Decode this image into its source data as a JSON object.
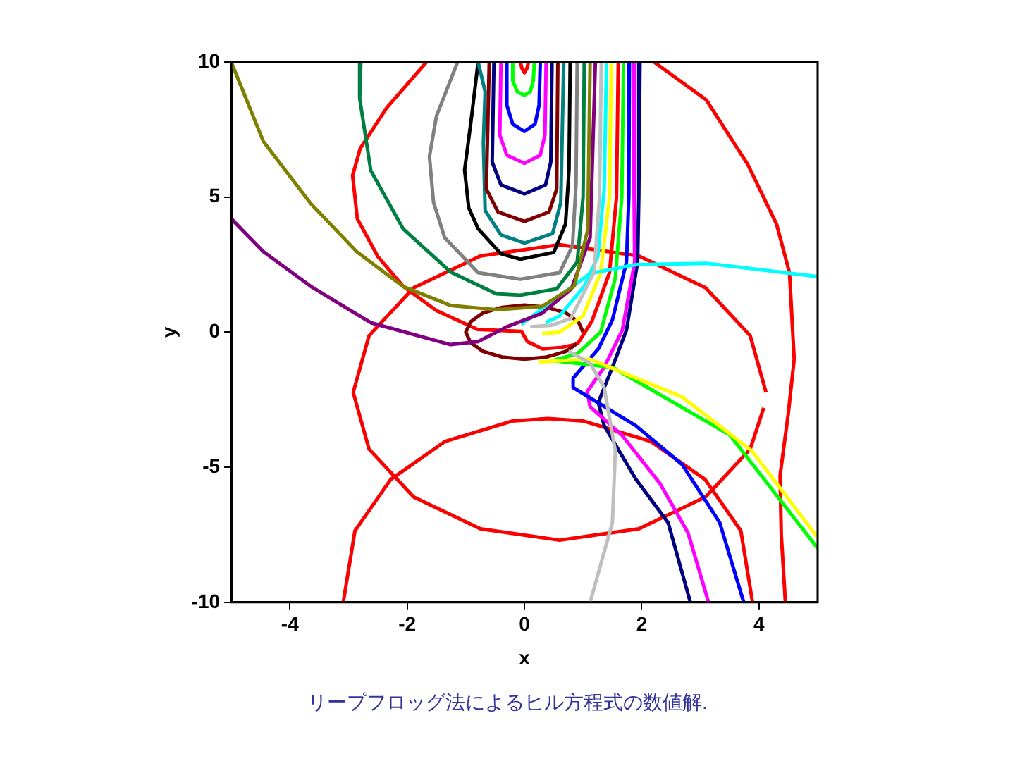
{
  "chart_data": {
    "type": "line",
    "xlabel": "x",
    "ylabel": "y",
    "xlim": [
      -5,
      5
    ],
    "xticks": [
      -4,
      -2,
      0,
      2,
      4
    ],
    "ylim": [
      -10,
      10
    ],
    "yticks": [
      -10,
      -5,
      0,
      5,
      10
    ],
    "grid": false,
    "legend": false,
    "marker": "none",
    "line_style": "solid",
    "annotations": [
      "リープフロッグ法によるヒル方程式の数値解."
    ],
    "series": [
      {
        "color": "#ff0000",
        "x": [
          -0.07,
          -0.04,
          0,
          0.04,
          0.07
        ],
        "values": [
          10,
          9.75,
          9.6,
          9.75,
          10
        ]
      },
      {
        "color": "#00ff00",
        "x": [
          -0.2,
          -0.2,
          -0.12,
          0,
          0.1,
          0.15,
          0.17
        ],
        "values": [
          10,
          9.3,
          8.9,
          8.77,
          8.9,
          9.3,
          10
        ]
      },
      {
        "color": "#0000ff",
        "x": [
          -0.3,
          -0.3,
          -0.2,
          0,
          0.18,
          0.25,
          0.27
        ],
        "values": [
          10,
          8.4,
          7.7,
          7.43,
          7.7,
          8.4,
          10
        ]
      },
      {
        "color": "#ff00ff",
        "x": [
          -0.4,
          -0.42,
          -0.3,
          0,
          0.27,
          0.35,
          0.37
        ],
        "values": [
          10,
          7.3,
          6.55,
          6.25,
          6.55,
          7.3,
          10
        ]
      },
      {
        "color": "#000080",
        "x": [
          -0.52,
          -0.55,
          -0.4,
          0,
          0.36,
          0.45,
          0.47
        ],
        "values": [
          10,
          6.3,
          5.45,
          5.12,
          5.45,
          6.3,
          10
        ]
      },
      {
        "color": "#800000",
        "x": [
          -0.6,
          -0.65,
          -0.45,
          0,
          0.42,
          0.55,
          0.57
        ],
        "values": [
          10,
          5.3,
          4.45,
          4.1,
          4.45,
          5.3,
          10
        ]
      },
      {
        "color": "#008080",
        "x": [
          -0.79,
          -0.67,
          -0.7,
          -0.67,
          -0.4,
          0,
          0.48,
          0.62,
          0.67
        ],
        "values": [
          10,
          8.9,
          7,
          4.5,
          3.6,
          3.3,
          3.65,
          4.8,
          10
        ]
      },
      {
        "color": "#000000",
        "x": [
          -0.79,
          -0.9,
          -1.02,
          -0.95,
          -0.79,
          -0.4,
          -0.07,
          0.5,
          0.7,
          0.76,
          0.78
        ],
        "values": [
          10,
          8,
          6,
          4.6,
          3.83,
          2.9,
          2.7,
          2.95,
          4,
          6,
          10
        ]
      },
      {
        "color": "#808080",
        "x": [
          -1.14,
          -1.5,
          -1.62,
          -1.55,
          -1.36,
          -0.79,
          -0.07,
          0.6,
          0.82,
          0.88,
          0.9
        ],
        "values": [
          10,
          8,
          6.5,
          4.8,
          3.5,
          2.2,
          1.96,
          2.2,
          3.2,
          5.5,
          10
        ]
      },
      {
        "color": "#008040",
        "x": [
          -2.79,
          -2.81,
          -2.62,
          -2.07,
          -1.26,
          -0.48,
          -0.07,
          0.55,
          0.9,
          1,
          1.02
        ],
        "values": [
          10,
          8.66,
          5.98,
          3.83,
          2.23,
          1.42,
          1.37,
          1.6,
          2.6,
          5,
          10
        ]
      },
      {
        "color": "#808000",
        "x": [
          -5,
          -4.45,
          -3.64,
          -2.86,
          -2.07,
          -1.26,
          -0.48,
          0.3,
          0.85,
          1.08,
          1.12
        ],
        "values": [
          10,
          7.05,
          4.75,
          2.98,
          1.69,
          0.99,
          0.83,
          0.95,
          1.7,
          3.8,
          10
        ]
      },
      {
        "color": "#800080",
        "x": [
          -5,
          -4.45,
          -3.64,
          -2.62,
          -1.26,
          -0.79,
          -0.31,
          0.3,
          0.8,
          1.12,
          1.21
        ],
        "values": [
          4.2,
          2.98,
          1.69,
          0.35,
          -0.46,
          -0.35,
          0.19,
          0.7,
          1.6,
          3.5,
          10
        ]
      },
      {
        "color": "#c0c0c0",
        "x": [
          0.1,
          0.45,
          0.79,
          1.19,
          1.28,
          1.31
        ],
        "values": [
          0.2,
          0.25,
          0.5,
          2.23,
          5,
          10
        ]
      },
      {
        "color": "#bfbfbf",
        "x": [
          0.75,
          1.12,
          1.36,
          1.55,
          1.5,
          1.12
        ],
        "values": [
          -0.7,
          -1.15,
          -2.05,
          -4.4,
          -7.05,
          -10
        ]
      },
      {
        "color": "#00ffff",
        "x": [
          1.4,
          1.36,
          1.25,
          1.02,
          0.6,
          0.36
        ],
        "values": [
          10,
          5.3,
          2.8,
          1.7,
          0.6,
          0.35
        ]
      },
      {
        "color": "#00fefe",
        "x": [
          -0.05,
          0.48,
          1.12,
          1.9,
          3.1,
          5
        ],
        "values": [
          0.29,
          1.16,
          2.17,
          2.5,
          2.55,
          2.06
        ]
      },
      {
        "color": "#ffff00",
        "x": [
          1.48,
          1.45,
          1.3,
          1,
          0.6,
          0.3
        ],
        "values": [
          10,
          5,
          2.2,
          0.6,
          0,
          -0.05
        ]
      },
      {
        "color": "#fefe00",
        "x": [
          0.24,
          1.12,
          2.69,
          3.88,
          5
        ],
        "values": [
          -1.1,
          -1,
          -2.4,
          -4.4,
          -7.6
        ]
      },
      {
        "color": "#fe0000",
        "x": [
          1.6,
          1.57,
          1.45,
          1.15,
          0.9
        ],
        "values": [
          10,
          5,
          2.2,
          0.4,
          -0.45
        ]
      },
      {
        "color": "#00fe00",
        "x": [
          1.69,
          1.66,
          1.55,
          1.3,
          0.9,
          0.48,
          1.5,
          3.5,
          5
        ],
        "values": [
          10,
          5,
          2,
          0,
          -0.8,
          -1.05,
          -1.3,
          -3.8,
          -8
        ]
      },
      {
        "color": "#0000fe",
        "x": [
          1.79,
          1.78,
          1.74,
          1.5,
          1.26,
          0.83,
          0.83,
          1.9,
          2.69,
          3.33,
          3.74
        ],
        "values": [
          10,
          5,
          2.6,
          0.45,
          -0.62,
          -1.7,
          -2.05,
          -3.46,
          -4.9,
          -7.05,
          -10
        ]
      },
      {
        "color": "#fe00fe",
        "x": [
          1.86,
          1.87,
          1.88,
          1.67,
          1.36,
          1.07,
          1.12,
          1.67,
          2.31,
          2.79,
          3.14
        ],
        "values": [
          10,
          5,
          2.6,
          0.08,
          -1.3,
          -2.2,
          -2.76,
          -3.83,
          -5.6,
          -7.43,
          -10
        ]
      },
      {
        "color": "#00007f",
        "x": [
          1.97,
          1.95,
          1.93,
          1.74,
          1.5,
          1.26,
          1.36,
          1.9,
          2.45,
          2.83
        ],
        "values": [
          10,
          5,
          2.6,
          0.08,
          -1.3,
          -2.6,
          -3.46,
          -5.44,
          -7.05,
          -10
        ]
      },
      {
        "color": "#7f0000",
        "x": [
          1,
          0.92,
          0.71,
          0.38,
          0,
          -0.38,
          -0.71,
          -0.92,
          -1,
          -0.92,
          -0.71,
          -0.38,
          0,
          0.38,
          0.71,
          0.92
        ],
        "values": [
          0,
          0.38,
          0.71,
          0.92,
          1,
          0.92,
          0.71,
          0.38,
          0,
          -0.38,
          -0.71,
          -0.92,
          -1,
          -0.92,
          -0.71,
          -0.38
        ]
      },
      {
        "color": "#fd0000",
        "x": [
          -1.67,
          -2.35,
          -2.8,
          -2.93,
          -2.85,
          -2.5,
          -2.07,
          -1.5,
          -0.8,
          -0.05,
          0.05,
          0.31,
          0.64,
          0.88
        ],
        "values": [
          10,
          8.3,
          6.8,
          5.8,
          4.2,
          2.8,
          1.7,
          0.8,
          0.1,
          0.03,
          -0.35,
          -0.62,
          -0.56,
          -0.45
        ]
      },
      {
        "color": "#fc0000",
        "x": [
          2.21,
          3.1,
          3.81,
          4.3,
          4.52,
          4.6,
          4.5,
          4.36,
          4.38,
          4.45
        ],
        "values": [
          10,
          8.6,
          6.2,
          4,
          2.2,
          -1,
          -3,
          -5.3,
          -7.5,
          -10
        ]
      },
      {
        "color": "#fb0000",
        "x": [
          4.12,
          3.85,
          3.09,
          1.95,
          0.6,
          -0.75,
          -1.89,
          -2.65,
          -2.92,
          -2.65,
          -1.89,
          -0.75,
          0.6,
          1.95,
          3.09,
          3.85,
          4.08
        ],
        "values": [
          -2.23,
          -0.13,
          1.64,
          2.82,
          3.24,
          2.82,
          1.64,
          -0.13,
          -2.23,
          -4.33,
          -6.1,
          -7.28,
          -7.7,
          -7.28,
          -6.1,
          -4.33,
          -2.8
        ]
      },
      {
        "color": "#fa0000",
        "x": [
          -3.09,
          -2.89,
          -2.28,
          -1.35,
          -0.21,
          0.4,
          1.01,
          2.15,
          3.08,
          3.69,
          3.89
        ],
        "values": [
          -10,
          -7.35,
          -5.45,
          -4.04,
          -3.29,
          -3.2,
          -3.29,
          -4.04,
          -5.45,
          -7.35,
          -10
        ]
      }
    ]
  }
}
